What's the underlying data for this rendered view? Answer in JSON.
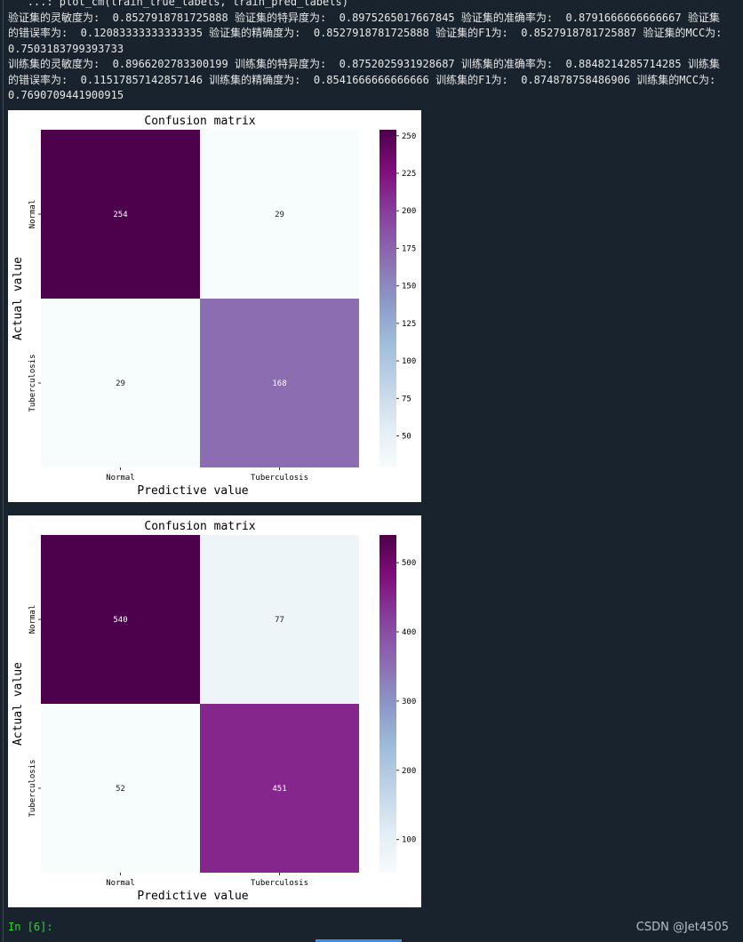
{
  "output": {
    "echo": "   ...: plot_cm(train_true_labels, train_pred_labels)",
    "lines": [
      "验证集的灵敏度为:  0.8527918781725888 验证集的特异度为:  0.8975265017667845 验证集的准确率为:  0.8791666666666667 验证集的错误率为:  0.12083333333333335 验证集的精确度为:  0.8527918781725888 验证集的F1为:  0.8527918781725887 验证集的MCC为:  0.7503183799393733",
      "训练集的灵敏度为:  0.8966202783300199 训练集的特异度为:  0.8752025931928687 训练集的准确率为:  0.8848214285714285 训练集的错误率为:  0.11517857142857146 训练集的精确度为:  0.8541666666666666 训练集的F1为:  0.874878758486906 训练集的MCC为:  0.7690709441900915"
    ]
  },
  "chart_data": [
    {
      "type": "heatmap",
      "title": "Confusion matrix",
      "xlabel": "Predictive value",
      "ylabel": "Actual value",
      "x_categories": [
        "Normal",
        "Tuberculosis"
      ],
      "y_categories": [
        "Normal",
        "Tuberculosis"
      ],
      "values": [
        [
          254,
          29
        ],
        [
          29,
          168
        ]
      ],
      "colormap": "BuPu",
      "clim": [
        29,
        254
      ],
      "cticks": [
        50,
        75,
        100,
        125,
        150,
        175,
        200,
        225,
        250
      ]
    },
    {
      "type": "heatmap",
      "title": "Confusion matrix",
      "xlabel": "Predictive value",
      "ylabel": "Actual value",
      "x_categories": [
        "Normal",
        "Tuberculosis"
      ],
      "y_categories": [
        "Normal",
        "Tuberculosis"
      ],
      "values": [
        [
          540,
          77
        ],
        [
          52,
          451
        ]
      ],
      "colormap": "BuPu",
      "clim": [
        52,
        540
      ],
      "cticks": [
        100,
        200,
        300,
        400,
        500
      ]
    }
  ],
  "prompt": "In [6]:",
  "watermark": "CSDN @Jet4505"
}
